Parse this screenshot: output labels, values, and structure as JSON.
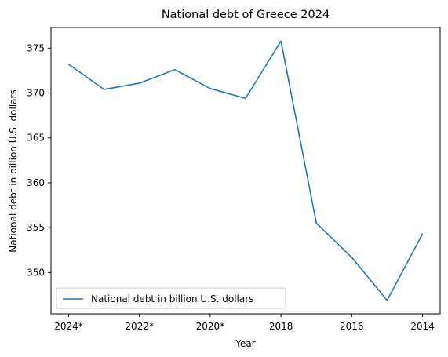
{
  "chart_data": {
    "type": "line",
    "title": "National debt of Greece 2024",
    "xlabel": "Year",
    "ylabel": "National debt in billion U.S. dollars",
    "x": [
      "2024*",
      "2023*",
      "2022*",
      "2021*",
      "2020*",
      "2019",
      "2018",
      "2017",
      "2016",
      "2015",
      "2014"
    ],
    "x_tick_labels": [
      "2024*",
      "2022*",
      "2020*",
      "2018",
      "2016",
      "2014"
    ],
    "series": [
      {
        "name": "National debt in billion U.S. dollars",
        "values": [
          373.2,
          370.4,
          371.1,
          372.6,
          370.5,
          369.4,
          375.8,
          355.5,
          351.7,
          346.9,
          354.3
        ],
        "color": "#1f77b4"
      }
    ],
    "y_ticks": [
      350,
      355,
      360,
      365,
      370,
      375
    ],
    "ylim": [
      345.4,
      377.3
    ],
    "grid": false,
    "legend_position": "lower-left"
  }
}
